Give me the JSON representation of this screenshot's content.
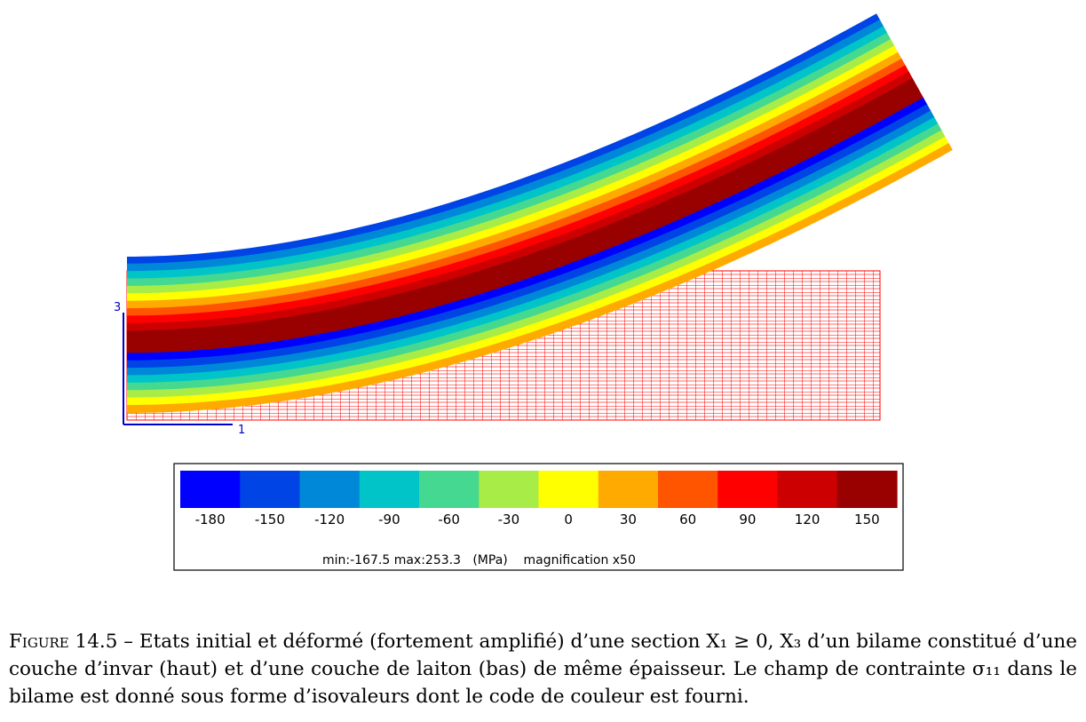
{
  "figure": {
    "axes": {
      "vertical_label": "3",
      "horizontal_label": "1"
    },
    "colorbar": {
      "colors": [
        "#0000ff",
        "#0044e6",
        "#0088d8",
        "#00c4c8",
        "#44d890",
        "#a8ec48",
        "#ffff00",
        "#ffaa00",
        "#ff5500",
        "#ff0000",
        "#cc0000",
        "#990000"
      ],
      "tick_labels": [
        "-180",
        "-150",
        "-120",
        "-90",
        "-60",
        "-30",
        "0",
        "30",
        "60",
        "90",
        "120",
        "150"
      ],
      "info": "min:-167.5 max:253.3   (MPa)    magnification x50"
    },
    "mesh_color": "#ff0000",
    "caption": {
      "prefix": "Figure 14.5",
      "text": "– Etats initial et déformé (fortement amplifié) d’une section X₁ ≥ 0, X₃ d’un bilame constitué d’une couche d’invar (haut) et d’une couche de laiton (bas) de même épaisseur. Le champ de contrainte σ₁₁ dans le bilame est donné sous forme d’isovaleurs dont le code de couleur est fourni."
    }
  }
}
